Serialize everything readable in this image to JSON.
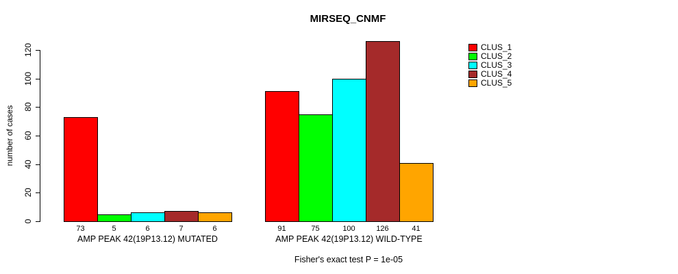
{
  "title": "MIRSEQ_CNMF",
  "footer": "Fisher's exact test P = 1e-05",
  "chart_data": {
    "type": "bar",
    "title": "MIRSEQ_CNMF",
    "xlabel": "",
    "ylabel": "number of cases",
    "ylim": [
      0,
      120
    ],
    "yticks": [
      0,
      20,
      40,
      60,
      80,
      100,
      120
    ],
    "grid": false,
    "bar_value_labels_shown": true,
    "legend": {
      "position": "top-right",
      "entries": [
        {
          "label": "CLUS_1",
          "color": "#FF0000"
        },
        {
          "label": "CLUS_2",
          "color": "#00FF00"
        },
        {
          "label": "CLUS_3",
          "color": "#00FFFF"
        },
        {
          "label": "CLUS_4",
          "color": "#A52A2A"
        },
        {
          "label": "CLUS_5",
          "color": "#FFA500"
        }
      ]
    },
    "groups": [
      {
        "label": "AMP PEAK 42(19P13.12) MUTATED",
        "values": [
          73,
          5,
          6,
          7,
          6
        ]
      },
      {
        "label": "AMP PEAK 42(19P13.12) WILD-TYPE",
        "values": [
          91,
          75,
          100,
          126,
          41
        ]
      }
    ],
    "annotation": "Fisher's exact test P = 1e-05"
  },
  "colors": {
    "background": "#FFFFFF",
    "axis": "#000000",
    "text": "#000000"
  }
}
